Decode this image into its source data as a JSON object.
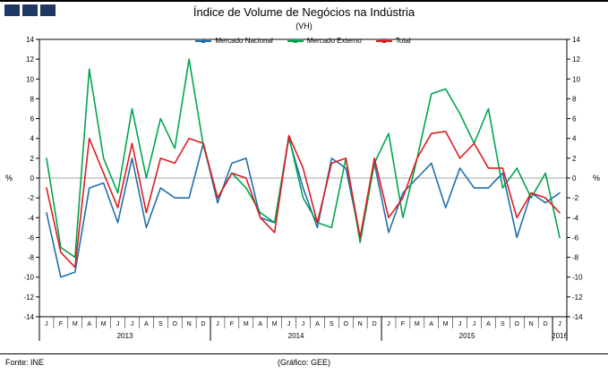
{
  "title": "Índice de Volume de Negócios na Indústria",
  "subtitle": "(VH)",
  "footer": {
    "source": "Fonte: INE",
    "credit": "(Gráfico: GEE)"
  },
  "colors": {
    "logo": "#1F3864",
    "nacional": "#1F6FAE",
    "externo": "#00A550",
    "total": "#DD1D21",
    "zero_line": "#A6A6A6",
    "axis": "#000000"
  },
  "chart_data": {
    "type": "line",
    "title": "Índice de Volume de Negócios na Indústria (VH)",
    "ylabel": "%",
    "ylim": [
      -14,
      14
    ],
    "ytick": 2,
    "grid": "zero-line-only",
    "legend_position": "top-center",
    "x": [
      "J",
      "F",
      "M",
      "A",
      "M",
      "J",
      "J",
      "A",
      "S",
      "O",
      "N",
      "D",
      "J",
      "F",
      "M",
      "A",
      "M",
      "J",
      "J",
      "A",
      "S",
      "O",
      "N",
      "D",
      "J",
      "F",
      "M",
      "A",
      "M",
      "J",
      "J",
      "A",
      "S",
      "O",
      "N",
      "D",
      "J"
    ],
    "years": [
      {
        "label": "2013",
        "start": 0,
        "end": 11
      },
      {
        "label": "2014",
        "start": 12,
        "end": 23
      },
      {
        "label": "2015",
        "start": 24,
        "end": 35
      },
      {
        "label": "2016",
        "start": 36,
        "end": 36
      }
    ],
    "series": [
      {
        "name": "Mercado Nacional",
        "color": "#1F6FAE",
        "values": [
          -3.5,
          -10,
          -9.5,
          -1,
          -0.5,
          -4.5,
          2,
          -5,
          -1,
          -2,
          -2,
          3.5,
          -2.5,
          1.5,
          2,
          -4,
          -4.5,
          4,
          -1,
          -5,
          2,
          1,
          -6,
          1.5,
          -5.5,
          -1.5,
          0,
          1.5,
          -3,
          1,
          -1,
          -1,
          0.5,
          -6,
          -1.5,
          -2.5,
          -1.5
        ]
      },
      {
        "name": "Mercado Externo",
        "color": "#00A550",
        "values": [
          2,
          -7,
          -8,
          11,
          2,
          -1.5,
          7,
          0,
          6,
          3,
          12,
          3.3,
          -2,
          0.5,
          -1,
          -3.5,
          -4.5,
          4.2,
          -2,
          -4.5,
          -5,
          2,
          -6.5,
          1.5,
          4.5,
          -4,
          2,
          8.5,
          9,
          6.5,
          3.5,
          7,
          -1,
          1,
          -2,
          0.5,
          -6
        ]
      },
      {
        "name": "Total",
        "color": "#DD1D21",
        "values": [
          -1,
          -7.5,
          -9,
          4,
          0.5,
          -3,
          3.5,
          -3.5,
          2,
          1.5,
          4,
          3.5,
          -2,
          0.5,
          0,
          -4,
          -5.5,
          4.3,
          1,
          -4.5,
          1.5,
          2,
          -6,
          2,
          -4,
          -2,
          2,
          4.5,
          4.7,
          2,
          3.5,
          1,
          1,
          -4,
          -1.5,
          -2,
          -3.5
        ]
      }
    ]
  }
}
